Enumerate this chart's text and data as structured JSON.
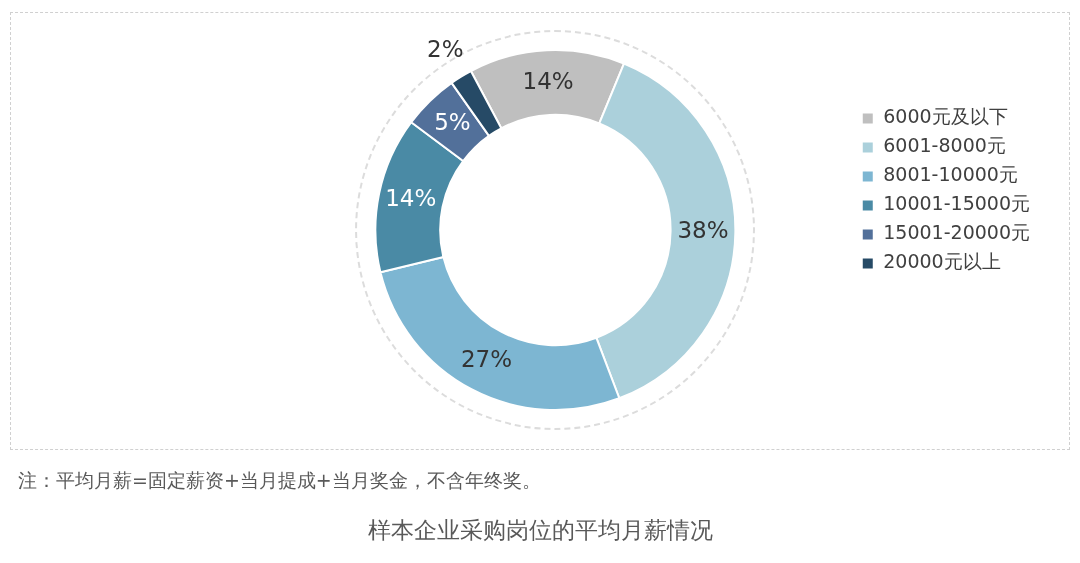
{
  "chart_data": {
    "type": "donut",
    "title": "样本企业采购岗位的平均月薪情况",
    "categories": [
      "6000元及以下",
      "6001-8000元",
      "8001-10000元",
      "10001-15000元",
      "15001-20000元",
      "20000元以上"
    ],
    "values": [
      14,
      38,
      27,
      14,
      5,
      2
    ],
    "colors": [
      "#bfbfbf",
      "#abd0db",
      "#7db6d2",
      "#4a8aa5",
      "#52709a",
      "#264a66"
    ],
    "value_labels": [
      "14%",
      "38%",
      "27%",
      "14%",
      "5%",
      "2%"
    ],
    "legend": "right",
    "annotations": [
      "注：平均月薪=固定薪资+当月提成+当月奖金，不含年终奖。"
    ]
  }
}
